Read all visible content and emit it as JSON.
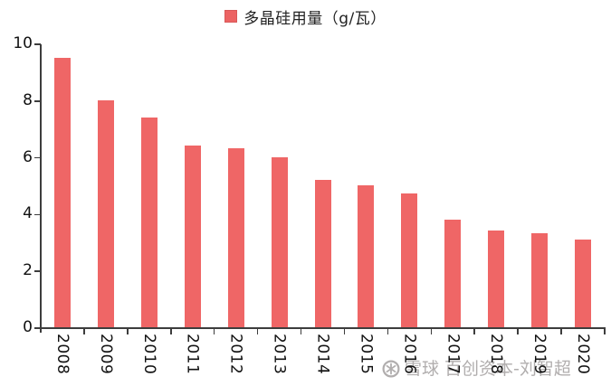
{
  "legend": {
    "label": "多晶硅用量（g/瓦）",
    "marker_color": "#ec6363",
    "marker_border_color": "#d85858"
  },
  "watermark": {
    "brand": "雪球",
    "user": "百创资本-刘智超",
    "full_text": "雪球 百创资本-刘智超",
    "logo_icon": "snowball-icon",
    "color": "#b1aeae"
  },
  "chart_data": {
    "type": "bar",
    "title": "多晶硅用量（g/瓦）",
    "categories": [
      "2008",
      "2009",
      "2010",
      "2011",
      "2012",
      "2013",
      "2014",
      "2015",
      "2016",
      "2017",
      "2018",
      "2019",
      "2020"
    ],
    "values": [
      9.5,
      8.0,
      7.4,
      6.4,
      6.3,
      6.0,
      5.2,
      5.0,
      4.7,
      3.8,
      3.4,
      3.3,
      3.1
    ],
    "xlabel": "",
    "ylabel": "",
    "ylim": [
      0,
      10
    ],
    "yticks": [
      0,
      2,
      4,
      6,
      8,
      10
    ],
    "grid": false,
    "legend_position": "top-center",
    "bar_color": "#ef6666",
    "axis_color": "#3d3d3d"
  }
}
